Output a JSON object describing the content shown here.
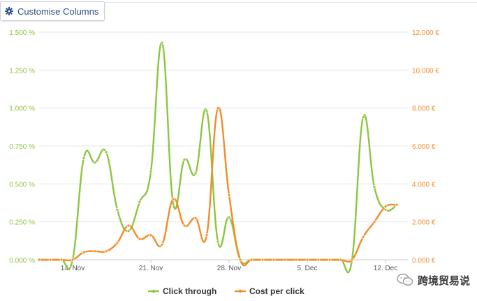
{
  "toolbar": {
    "customise_label": "Customise Columns"
  },
  "colors": {
    "click_through": "#8cc63f",
    "cost_per_click": "#f28c28",
    "grid": "#e6e6e6"
  },
  "chart_data": {
    "type": "line",
    "x_ticks": [
      "14. Nov",
      "21. Nov",
      "28. Nov",
      "5. Dec",
      "12. Dec"
    ],
    "y_left": {
      "ticks": [
        "0.000 %",
        "0.250 %",
        "0.500 %",
        "0.750 %",
        "1.000 %",
        "1.250 %",
        "1.500 %"
      ],
      "range": [
        0,
        1.5
      ]
    },
    "y_right": {
      "ticks": [
        "0.000 €",
        "2.000 €",
        "4.000 €",
        "6.000 €",
        "8.000 €",
        "10.000 €",
        "12.000 €"
      ],
      "range": [
        0,
        12
      ]
    },
    "x_range": [
      "2013-11-11",
      "2013-12-14"
    ],
    "series": [
      {
        "name": "Click through",
        "axis": "left",
        "points": [
          [
            "2013-11-11",
            0
          ],
          [
            "2013-11-12",
            0
          ],
          [
            "2013-11-13",
            0
          ],
          [
            "2013-11-14",
            0
          ],
          [
            "2013-11-15",
            0.67
          ],
          [
            "2013-11-16",
            0.64
          ],
          [
            "2013-11-17",
            0.71
          ],
          [
            "2013-11-18",
            0.33
          ],
          [
            "2013-11-19",
            0.19
          ],
          [
            "2013-11-20",
            0.38
          ],
          [
            "2013-11-21",
            0.58
          ],
          [
            "2013-11-22",
            1.43
          ],
          [
            "2013-11-23",
            0.37
          ],
          [
            "2013-11-24",
            0.66
          ],
          [
            "2013-11-25",
            0.57
          ],
          [
            "2013-11-26",
            0.98
          ],
          [
            "2013-11-27",
            0.12
          ],
          [
            "2013-11-28",
            0.28
          ],
          [
            "2013-11-29",
            0
          ],
          [
            "2013-11-30",
            0
          ],
          [
            "2013-12-01",
            0
          ],
          [
            "2013-12-02",
            0
          ],
          [
            "2013-12-03",
            0
          ],
          [
            "2013-12-04",
            0
          ],
          [
            "2013-12-05",
            0
          ],
          [
            "2013-12-06",
            0
          ],
          [
            "2013-12-07",
            0
          ],
          [
            "2013-12-08",
            0
          ],
          [
            "2013-12-09",
            0
          ],
          [
            "2013-12-10",
            0.94
          ],
          [
            "2013-12-11",
            0.48
          ],
          [
            "2013-12-12",
            0.33
          ],
          [
            "2013-12-13",
            0.36
          ]
        ]
      },
      {
        "name": "Cost per click",
        "axis": "right",
        "points": [
          [
            "2013-11-11",
            0
          ],
          [
            "2013-11-12",
            0
          ],
          [
            "2013-11-13",
            0
          ],
          [
            "2013-11-14",
            0
          ],
          [
            "2013-11-15",
            0.4
          ],
          [
            "2013-11-16",
            0.45
          ],
          [
            "2013-11-17",
            0.45
          ],
          [
            "2013-11-18",
            0.9
          ],
          [
            "2013-11-19",
            1.8
          ],
          [
            "2013-11-20",
            1.1
          ],
          [
            "2013-11-21",
            1.3
          ],
          [
            "2013-11-22",
            0.8
          ],
          [
            "2013-11-23",
            3.2
          ],
          [
            "2013-11-24",
            1.8
          ],
          [
            "2013-11-25",
            2.2
          ],
          [
            "2013-11-26",
            1.3
          ],
          [
            "2013-11-27",
            8.0
          ],
          [
            "2013-11-28",
            3.4
          ],
          [
            "2013-11-29",
            0
          ],
          [
            "2013-11-30",
            0
          ],
          [
            "2013-12-01",
            0
          ],
          [
            "2013-12-02",
            0
          ],
          [
            "2013-12-03",
            0
          ],
          [
            "2013-12-04",
            0
          ],
          [
            "2013-12-05",
            0
          ],
          [
            "2013-12-06",
            0
          ],
          [
            "2013-12-07",
            0
          ],
          [
            "2013-12-08",
            0
          ],
          [
            "2013-12-09",
            0
          ],
          [
            "2013-12-10",
            1.2
          ],
          [
            "2013-12-11",
            2.0
          ],
          [
            "2013-12-12",
            2.8
          ],
          [
            "2013-12-13",
            2.9
          ]
        ]
      }
    ],
    "grid": true,
    "legend_position": "bottom"
  },
  "watermark": {
    "text": "跨境贸易说"
  }
}
